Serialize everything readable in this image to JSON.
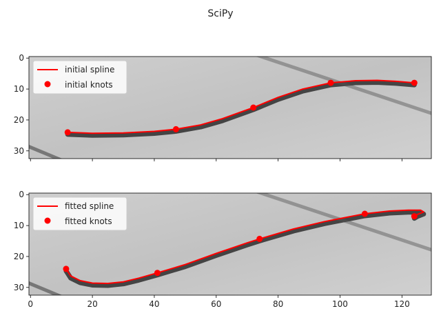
{
  "figure": {
    "title": "SciPy"
  },
  "colors": {
    "curve": "#ff0000",
    "knot": "#ff0000",
    "axis": "#000000",
    "image_bg": "#c8c8c8",
    "stroke_dark": "#1a1a1a"
  },
  "chart_data": [
    {
      "type": "line",
      "title": "",
      "xlabel": "",
      "ylabel": "",
      "background": "grayscale image",
      "xlim": [
        -0.5,
        129.5
      ],
      "ylim": [
        32.5,
        -0.5
      ],
      "xticks": [
        0,
        20,
        40,
        60,
        80,
        100,
        120
      ],
      "xtick_labels_visible": false,
      "yticks": [
        0,
        10,
        20,
        30
      ],
      "ytick_labels": [
        "0",
        "10",
        "20",
        "30"
      ],
      "legend": {
        "position": "top-left",
        "entries": [
          "initial spline",
          "initial knots"
        ]
      },
      "series": [
        {
          "name": "initial spline",
          "kind": "line",
          "x": [
            12,
            20,
            30,
            40,
            47,
            55,
            62,
            72,
            80,
            88,
            97,
            105,
            112,
            118,
            124
          ],
          "y": [
            24,
            24.3,
            24.2,
            23.7,
            23.0,
            21.6,
            19.6,
            16.0,
            12.7,
            10.0,
            8.0,
            7.3,
            7.2,
            7.5,
            8.0
          ]
        },
        {
          "name": "initial knots",
          "kind": "scatter",
          "x": [
            12,
            47,
            72,
            97,
            124
          ],
          "y": [
            24,
            23,
            16,
            8,
            8
          ]
        }
      ]
    },
    {
      "type": "line",
      "title": "",
      "xlabel": "",
      "ylabel": "",
      "background": "grayscale image",
      "xlim": [
        -0.5,
        129.5
      ],
      "ylim": [
        32.5,
        -0.5
      ],
      "xticks": [
        0,
        20,
        40,
        60,
        80,
        100,
        120
      ],
      "xtick_labels": [
        "0",
        "20",
        "40",
        "60",
        "80",
        "100",
        "120"
      ],
      "yticks": [
        0,
        10,
        20,
        30
      ],
      "ytick_labels": [
        "0",
        "10",
        "20",
        "30"
      ],
      "legend": {
        "position": "top-left",
        "entries": [
          "fitted spline",
          "fitted knots"
        ]
      },
      "series": [
        {
          "name": "fitted spline",
          "kind": "line",
          "x": [
            11.5,
            13,
            16,
            20,
            25,
            30,
            35,
            41,
            50,
            60,
            70,
            74,
            85,
            95,
            108,
            116,
            122,
            126,
            127,
            125,
            124
          ],
          "y": [
            24,
            26.3,
            27.8,
            28.6,
            28.7,
            28.2,
            27.0,
            25.3,
            22.6,
            19.0,
            15.6,
            14.3,
            11.1,
            8.7,
            6.2,
            5.3,
            5.0,
            5.0,
            5.6,
            6.4,
            7.0
          ]
        },
        {
          "name": "fitted knots",
          "kind": "scatter",
          "x": [
            11.5,
            41,
            74,
            108,
            124
          ],
          "y": [
            24,
            25.3,
            14.3,
            6.2,
            7.0
          ]
        }
      ]
    }
  ]
}
